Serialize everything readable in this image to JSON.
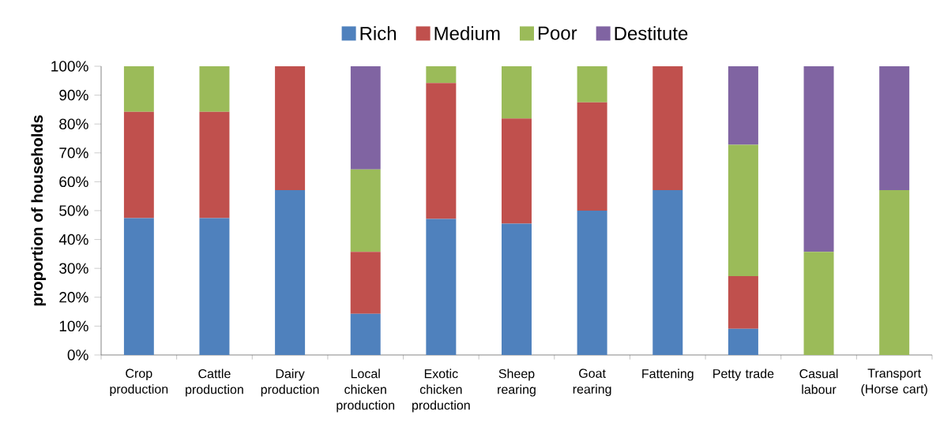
{
  "chart_data": {
    "type": "bar",
    "stacked": true,
    "ylabel": "proportion of households",
    "categories": [
      "Crop production",
      "Cattle production",
      "Dairy production",
      "Local chicken production",
      "Exotic chicken production",
      "Sheep rearing",
      "Goat rearing",
      "Fattening",
      "Petty trade",
      "Casual labour",
      "Transport (Horse cart)"
    ],
    "series": [
      {
        "name": "Rich",
        "color": "#4f81bd",
        "values": [
          47.4,
          47.4,
          57.1,
          14.3,
          47.1,
          45.5,
          50,
          57.1,
          9.1,
          0,
          0
        ]
      },
      {
        "name": "Medium",
        "color": "#c0504d",
        "values": [
          36.8,
          36.8,
          42.9,
          21.4,
          47.1,
          36.4,
          37.5,
          42.9,
          18.2,
          0,
          0
        ]
      },
      {
        "name": "Poor",
        "color": "#9bbb59",
        "values": [
          15.8,
          15.8,
          0,
          28.6,
          5.9,
          18.2,
          12.5,
          0,
          45.5,
          35.7,
          57.1
        ]
      },
      {
        "name": "Destitute",
        "color": "#8064a2",
        "values": [
          0,
          0,
          0,
          35.7,
          0,
          0,
          0,
          0,
          27.3,
          64.3,
          42.9
        ]
      }
    ],
    "ylim": [
      0,
      100
    ],
    "yticks": [
      {
        "value": 0,
        "label": "0%"
      },
      {
        "value": 10,
        "label": "10%"
      },
      {
        "value": 20,
        "label": "20%"
      },
      {
        "value": 30,
        "label": "30%"
      },
      {
        "value": 40,
        "label": "40%"
      },
      {
        "value": 50,
        "label": "50%"
      },
      {
        "value": 60,
        "label": "60%"
      },
      {
        "value": 70,
        "label": "70%"
      },
      {
        "value": 80,
        "label": "80%"
      },
      {
        "value": 90,
        "label": "90%"
      },
      {
        "value": 100,
        "label": "100%"
      }
    ],
    "grid": false,
    "legend": "top"
  }
}
